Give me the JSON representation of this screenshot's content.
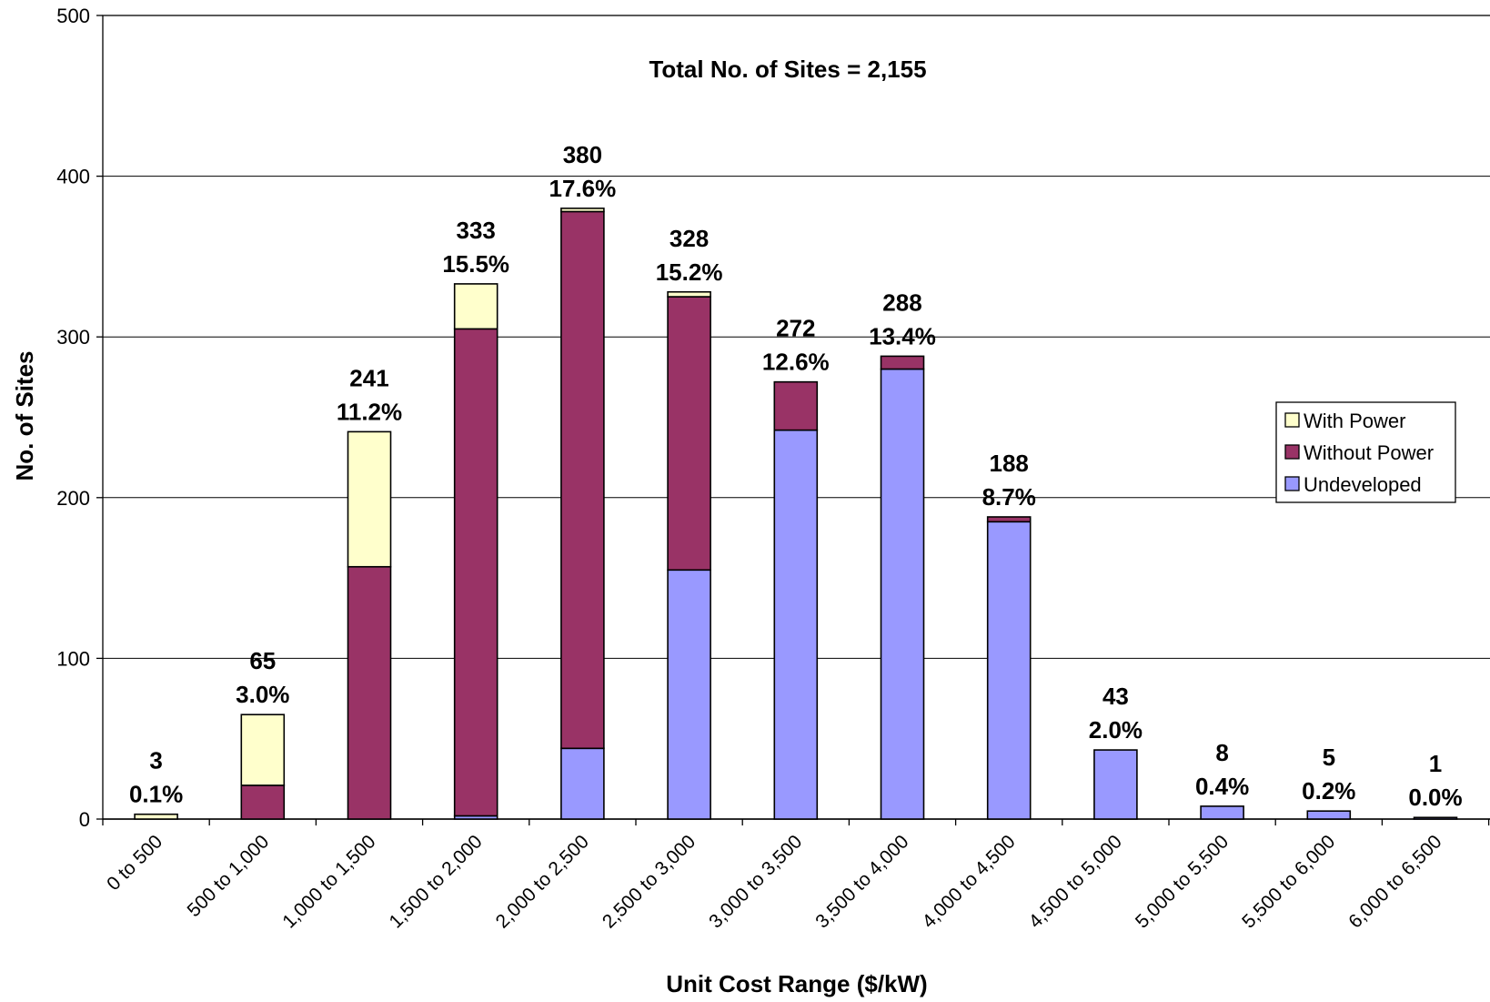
{
  "chart_data": {
    "type": "bar",
    "stacked": true,
    "title": "",
    "annotation": "Total No. of Sites = 2,155",
    "xlabel": "Unit Cost Range ($/kW)",
    "ylabel": "No. of Sites",
    "ylim": [
      0,
      500
    ],
    "yticks": [
      "0",
      "100",
      "200",
      "300",
      "400",
      "500"
    ],
    "grid": true,
    "legend_position": "right",
    "categories": [
      "0 to 500",
      "500 to 1,000",
      "1,000 to 1,500",
      "1,500 to 2,000",
      "2,000 to 2,500",
      "2,500 to 3,000",
      "3,000 to 3,500",
      "3,500 to 4,000",
      "4,000 to 4,500",
      "4,500 to 5,000",
      "5,000 to 5,500",
      "5,500 to 6,000",
      "6,000 to 6,500"
    ],
    "series": [
      {
        "name": "Undeveloped",
        "color": "#9999ff",
        "values": [
          0,
          0,
          0,
          2,
          44,
          155,
          242,
          280,
          185,
          43,
          8,
          5,
          1
        ]
      },
      {
        "name": "Without Power",
        "color": "#993366",
        "values": [
          0,
          21,
          157,
          303,
          334,
          170,
          30,
          8,
          3,
          0,
          0,
          0,
          0
        ]
      },
      {
        "name": "With Power",
        "color": "#ffffcc",
        "values": [
          3,
          44,
          84,
          28,
          2,
          3,
          0,
          0,
          0,
          0,
          0,
          0,
          0
        ]
      }
    ],
    "legend_order": [
      "With Power",
      "Without Power",
      "Undeveloped"
    ],
    "data_labels": [
      {
        "count": "3",
        "percent": "0.1%"
      },
      {
        "count": "65",
        "percent": "3.0%"
      },
      {
        "count": "241",
        "percent": "11.2%"
      },
      {
        "count": "333",
        "percent": "15.5%"
      },
      {
        "count": "380",
        "percent": "17.6%"
      },
      {
        "count": "328",
        "percent": "15.2%"
      },
      {
        "count": "272",
        "percent": "12.6%"
      },
      {
        "count": "288",
        "percent": "13.4%"
      },
      {
        "count": "188",
        "percent": "8.7%"
      },
      {
        "count": "43",
        "percent": "2.0%"
      },
      {
        "count": "8",
        "percent": "0.4%"
      },
      {
        "count": "5",
        "percent": "0.2%"
      },
      {
        "count": "1",
        "percent": "0.0%"
      }
    ]
  }
}
